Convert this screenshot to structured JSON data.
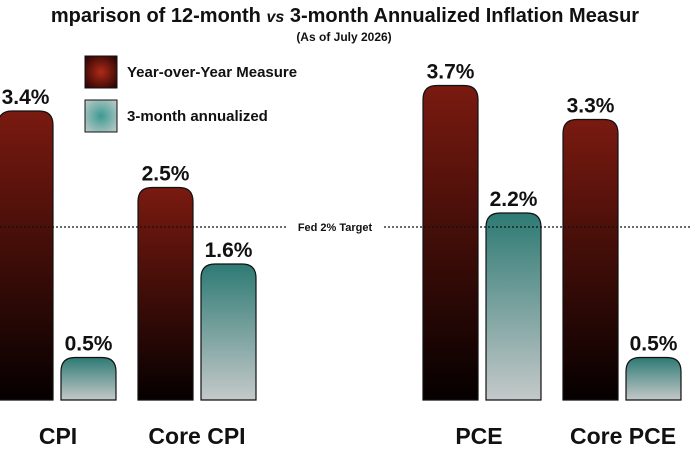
{
  "chart_data": {
    "type": "bar",
    "title_parts": [
      "mparison of 12-month ",
      "vs",
      " 3-month Annualized Inflation Measur"
    ],
    "subtitle": "(As of July 2026)",
    "categories": [
      "CPI",
      "Core CPI",
      "PCE",
      "Core PCE"
    ],
    "series": [
      {
        "name": "Year-over-Year Measure",
        "values": [
          3.4,
          2.5,
          3.7,
          3.3
        ],
        "labels": [
          "3.4%",
          "2.5%",
          "3.7%",
          "3.3%"
        ],
        "color_top": "#7a1a10",
        "color_bottom": "#050000"
      },
      {
        "name": "3-month annualized",
        "values": [
          0.5,
          1.6,
          2.2,
          0.5
        ],
        "labels": [
          "0.5%",
          "1.6%",
          "2.2%",
          "0.5%"
        ],
        "color_top": "#2e7a74",
        "color_bottom": "#c4c9c9"
      }
    ],
    "reference_line": {
      "value": 2.0,
      "label": "Fed 2% Target"
    },
    "ylim": [
      0,
      4.0
    ],
    "grid": false,
    "legend_position": "top-left"
  }
}
